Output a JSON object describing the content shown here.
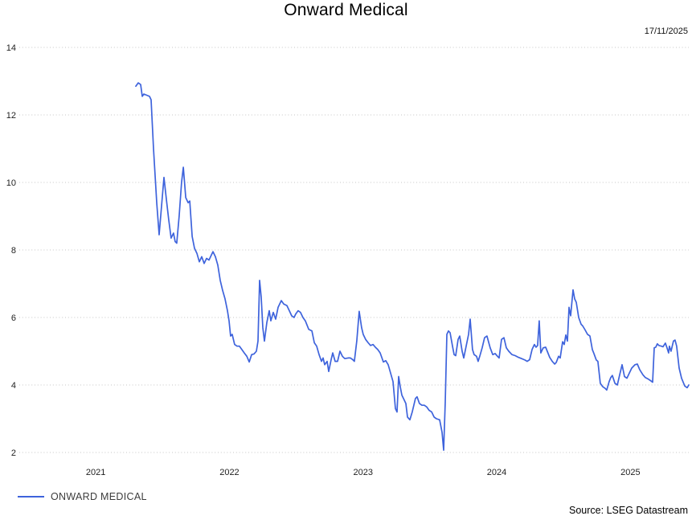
{
  "chart": {
    "title": "Onward Medical",
    "date_label": "17/11/2025",
    "source": "Source: LSEG Datastream",
    "legend": [
      {
        "label": "ONWARD MEDICAL",
        "color": "#3e63dc"
      }
    ],
    "colors": {
      "line": "#3e63dc",
      "gridline": "#c6c6c6",
      "tick_text": "#1f1f1f"
    }
  },
  "chart_data": {
    "type": "line",
    "title": "Onward Medical",
    "xlabel": "",
    "ylabel": "",
    "x_ticks": [
      2021,
      2022,
      2023,
      2024,
      2025
    ],
    "y_ticks": [
      2,
      4,
      6,
      8,
      10,
      12,
      14
    ],
    "ylim": [
      2,
      14
    ],
    "xlim": [
      2021.0,
      2025.95
    ],
    "grid": "horizontal-dotted",
    "legend_position": "bottom-left",
    "series": [
      {
        "name": "ONWARD MEDICAL",
        "color": "#3e63dc",
        "points": [
          [
            2021.8,
            12.85
          ],
          [
            2021.818,
            12.95
          ],
          [
            2021.836,
            12.9
          ],
          [
            2021.848,
            12.55
          ],
          [
            2021.86,
            12.62
          ],
          [
            2021.902,
            12.55
          ],
          [
            2021.914,
            12.45
          ],
          [
            2021.932,
            11.0
          ],
          [
            2021.956,
            9.4
          ],
          [
            2021.974,
            8.45
          ],
          [
            2021.992,
            9.3
          ],
          [
            2022.01,
            10.15
          ],
          [
            2022.028,
            9.5
          ],
          [
            2022.046,
            8.9
          ],
          [
            2022.064,
            8.35
          ],
          [
            2022.082,
            8.5
          ],
          [
            2022.094,
            8.25
          ],
          [
            2022.106,
            8.2
          ],
          [
            2022.124,
            9.0
          ],
          [
            2022.142,
            10.0
          ],
          [
            2022.155,
            10.45
          ],
          [
            2022.173,
            9.55
          ],
          [
            2022.191,
            9.4
          ],
          [
            2022.203,
            9.45
          ],
          [
            2022.221,
            8.4
          ],
          [
            2022.239,
            8.05
          ],
          [
            2022.257,
            7.9
          ],
          [
            2022.275,
            7.65
          ],
          [
            2022.293,
            7.8
          ],
          [
            2022.311,
            7.6
          ],
          [
            2022.329,
            7.75
          ],
          [
            2022.347,
            7.7
          ],
          [
            2022.365,
            7.85
          ],
          [
            2022.377,
            7.95
          ],
          [
            2022.395,
            7.8
          ],
          [
            2022.413,
            7.55
          ],
          [
            2022.431,
            7.1
          ],
          [
            2022.449,
            6.8
          ],
          [
            2022.467,
            6.55
          ],
          [
            2022.485,
            6.2
          ],
          [
            2022.497,
            5.9
          ],
          [
            2022.509,
            5.45
          ],
          [
            2022.521,
            5.5
          ],
          [
            2022.539,
            5.2
          ],
          [
            2022.557,
            5.15
          ],
          [
            2022.575,
            5.15
          ],
          [
            2022.593,
            5.05
          ],
          [
            2022.611,
            4.95
          ],
          [
            2022.63,
            4.85
          ],
          [
            2022.648,
            4.68
          ],
          [
            2022.666,
            4.9
          ],
          [
            2022.684,
            4.92
          ],
          [
            2022.702,
            5.0
          ],
          [
            2022.714,
            5.3
          ],
          [
            2022.726,
            7.1
          ],
          [
            2022.738,
            6.6
          ],
          [
            2022.75,
            5.7
          ],
          [
            2022.762,
            5.3
          ],
          [
            2022.78,
            5.85
          ],
          [
            2022.798,
            6.2
          ],
          [
            2022.81,
            5.9
          ],
          [
            2022.828,
            6.15
          ],
          [
            2022.846,
            5.95
          ],
          [
            2022.864,
            6.3
          ],
          [
            2022.888,
            6.5
          ],
          [
            2022.906,
            6.4
          ],
          [
            2022.93,
            6.35
          ],
          [
            2022.948,
            6.2
          ],
          [
            2022.966,
            6.05
          ],
          [
            2022.984,
            6.0
          ],
          [
            2022.996,
            6.1
          ],
          [
            2023.014,
            6.2
          ],
          [
            2023.032,
            6.15
          ],
          [
            2023.05,
            6.0
          ],
          [
            2023.068,
            5.9
          ],
          [
            2023.093,
            5.65
          ],
          [
            2023.117,
            5.6
          ],
          [
            2023.135,
            5.25
          ],
          [
            2023.153,
            5.15
          ],
          [
            2023.171,
            4.9
          ],
          [
            2023.189,
            4.7
          ],
          [
            2023.201,
            4.8
          ],
          [
            2023.213,
            4.6
          ],
          [
            2023.231,
            4.7
          ],
          [
            2023.243,
            4.4
          ],
          [
            2023.261,
            4.75
          ],
          [
            2023.273,
            4.95
          ],
          [
            2023.291,
            4.7
          ],
          [
            2023.309,
            4.7
          ],
          [
            2023.327,
            5.0
          ],
          [
            2023.345,
            4.85
          ],
          [
            2023.363,
            4.78
          ],
          [
            2023.387,
            4.8
          ],
          [
            2023.405,
            4.8
          ],
          [
            2023.423,
            4.75
          ],
          [
            2023.435,
            4.7
          ],
          [
            2023.453,
            5.3
          ],
          [
            2023.471,
            6.18
          ],
          [
            2023.489,
            5.7
          ],
          [
            2023.501,
            5.5
          ],
          [
            2023.519,
            5.35
          ],
          [
            2023.538,
            5.25
          ],
          [
            2023.556,
            5.17
          ],
          [
            2023.574,
            5.2
          ],
          [
            2023.592,
            5.12
          ],
          [
            2023.61,
            5.05
          ],
          [
            2023.628,
            4.95
          ],
          [
            2023.652,
            4.68
          ],
          [
            2023.67,
            4.72
          ],
          [
            2023.688,
            4.6
          ],
          [
            2023.706,
            4.35
          ],
          [
            2023.724,
            4.1
          ],
          [
            2023.742,
            3.3
          ],
          [
            2023.754,
            3.2
          ],
          [
            2023.766,
            4.25
          ],
          [
            2023.778,
            3.95
          ],
          [
            2023.79,
            3.7
          ],
          [
            2023.808,
            3.55
          ],
          [
            2023.82,
            3.45
          ],
          [
            2023.832,
            3.05
          ],
          [
            2023.85,
            2.97
          ],
          [
            2023.868,
            3.2
          ],
          [
            2023.892,
            3.6
          ],
          [
            2023.904,
            3.65
          ],
          [
            2023.922,
            3.45
          ],
          [
            2023.94,
            3.4
          ],
          [
            2023.958,
            3.4
          ],
          [
            2023.976,
            3.35
          ],
          [
            2023.994,
            3.25
          ],
          [
            2024.013,
            3.2
          ],
          [
            2024.031,
            3.05
          ],
          [
            2024.049,
            3.0
          ],
          [
            2024.073,
            2.97
          ],
          [
            2024.091,
            2.6
          ],
          [
            2024.103,
            2.07
          ],
          [
            2024.115,
            3.5
          ],
          [
            2024.127,
            5.5
          ],
          [
            2024.139,
            5.6
          ],
          [
            2024.151,
            5.55
          ],
          [
            2024.169,
            5.15
          ],
          [
            2024.181,
            4.9
          ],
          [
            2024.193,
            4.87
          ],
          [
            2024.211,
            5.35
          ],
          [
            2024.223,
            5.45
          ],
          [
            2024.241,
            5.0
          ],
          [
            2024.253,
            4.8
          ],
          [
            2024.271,
            5.15
          ],
          [
            2024.289,
            5.5
          ],
          [
            2024.301,
            5.95
          ],
          [
            2024.319,
            5.05
          ],
          [
            2024.331,
            4.9
          ],
          [
            2024.349,
            4.85
          ],
          [
            2024.361,
            4.7
          ],
          [
            2024.373,
            4.85
          ],
          [
            2024.391,
            5.1
          ],
          [
            2024.409,
            5.4
          ],
          [
            2024.427,
            5.45
          ],
          [
            2024.451,
            5.1
          ],
          [
            2024.47,
            4.9
          ],
          [
            2024.488,
            4.93
          ],
          [
            2024.506,
            4.85
          ],
          [
            2024.518,
            4.8
          ],
          [
            2024.536,
            5.35
          ],
          [
            2024.554,
            5.4
          ],
          [
            2024.572,
            5.1
          ],
          [
            2024.59,
            5.0
          ],
          [
            2024.614,
            4.9
          ],
          [
            2024.638,
            4.87
          ],
          [
            2024.662,
            4.82
          ],
          [
            2024.686,
            4.78
          ],
          [
            2024.71,
            4.74
          ],
          [
            2024.728,
            4.7
          ],
          [
            2024.746,
            4.75
          ],
          [
            2024.764,
            5.05
          ],
          [
            2024.782,
            5.2
          ],
          [
            2024.794,
            5.12
          ],
          [
            2024.806,
            5.17
          ],
          [
            2024.818,
            5.9
          ],
          [
            2024.83,
            4.95
          ],
          [
            2024.848,
            5.1
          ],
          [
            2024.866,
            5.12
          ],
          [
            2024.878,
            5.0
          ],
          [
            2024.896,
            4.82
          ],
          [
            2024.915,
            4.7
          ],
          [
            2024.933,
            4.62
          ],
          [
            2024.945,
            4.67
          ],
          [
            2024.963,
            4.85
          ],
          [
            2024.975,
            4.8
          ],
          [
            2024.993,
            5.28
          ],
          [
            2025.005,
            5.2
          ],
          [
            2025.017,
            5.48
          ],
          [
            2025.029,
            5.3
          ],
          [
            2025.041,
            6.3
          ],
          [
            2025.053,
            6.05
          ],
          [
            2025.071,
            6.82
          ],
          [
            2025.083,
            6.55
          ],
          [
            2025.095,
            6.45
          ],
          [
            2025.113,
            6.0
          ],
          [
            2025.131,
            5.8
          ],
          [
            2025.143,
            5.75
          ],
          [
            2025.161,
            5.63
          ],
          [
            2025.179,
            5.5
          ],
          [
            2025.197,
            5.45
          ],
          [
            2025.215,
            5.05
          ],
          [
            2025.227,
            4.93
          ],
          [
            2025.245,
            4.74
          ],
          [
            2025.257,
            4.7
          ],
          [
            2025.275,
            4.05
          ],
          [
            2025.293,
            3.95
          ],
          [
            2025.311,
            3.9
          ],
          [
            2025.323,
            3.85
          ],
          [
            2025.341,
            4.1
          ],
          [
            2025.353,
            4.22
          ],
          [
            2025.365,
            4.28
          ],
          [
            2025.384,
            4.05
          ],
          [
            2025.402,
            4.0
          ],
          [
            2025.42,
            4.3
          ],
          [
            2025.438,
            4.6
          ],
          [
            2025.456,
            4.25
          ],
          [
            2025.474,
            4.2
          ],
          [
            2025.492,
            4.35
          ],
          [
            2025.51,
            4.5
          ],
          [
            2025.534,
            4.6
          ],
          [
            2025.552,
            4.62
          ],
          [
            2025.57,
            4.45
          ],
          [
            2025.594,
            4.3
          ],
          [
            2025.612,
            4.22
          ],
          [
            2025.636,
            4.17
          ],
          [
            2025.654,
            4.12
          ],
          [
            2025.666,
            4.08
          ],
          [
            2025.678,
            5.1
          ],
          [
            2025.69,
            5.12
          ],
          [
            2025.702,
            5.22
          ],
          [
            2025.714,
            5.17
          ],
          [
            2025.732,
            5.15
          ],
          [
            2025.744,
            5.13
          ],
          [
            2025.762,
            5.24
          ],
          [
            2025.774,
            5.1
          ],
          [
            2025.786,
            4.95
          ],
          [
            2025.792,
            5.15
          ],
          [
            2025.804,
            5.0
          ],
          [
            2025.822,
            5.3
          ],
          [
            2025.834,
            5.33
          ],
          [
            2025.846,
            5.15
          ],
          [
            2025.865,
            4.5
          ],
          [
            2025.883,
            4.2
          ],
          [
            2025.907,
            3.97
          ],
          [
            2025.925,
            3.92
          ],
          [
            2025.937,
            4.0
          ]
        ]
      }
    ]
  }
}
